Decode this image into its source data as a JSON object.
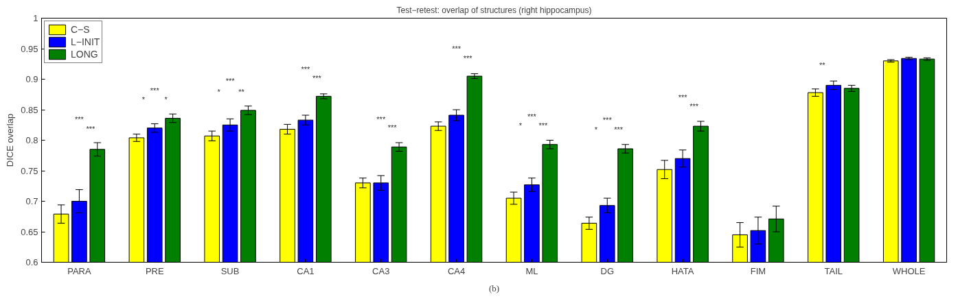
{
  "chart_data": {
    "type": "bar",
    "title": "Test−retest: overlap of structures (right hippocampus)",
    "ylabel": "DICE overlap",
    "categories": [
      "PARA",
      "PRE",
      "SUB",
      "CA1",
      "CA3",
      "CA4",
      "ML",
      "DG",
      "HATA",
      "FIM",
      "TAIL",
      "WHOLE"
    ],
    "series": [
      {
        "name": "C−S",
        "color": "#ffff00",
        "values": [
          0.679,
          0.804,
          0.807,
          0.818,
          0.73,
          0.823,
          0.705,
          0.664,
          0.752,
          0.645,
          0.878,
          0.93
        ],
        "errors": [
          0.015,
          0.006,
          0.008,
          0.008,
          0.008,
          0.007,
          0.01,
          0.01,
          0.015,
          0.02,
          0.006,
          0.002
        ]
      },
      {
        "name": "L−INIT",
        "color": "#0000ff",
        "values": [
          0.7,
          0.82,
          0.825,
          0.833,
          0.73,
          0.841,
          0.727,
          0.693,
          0.77,
          0.652,
          0.89,
          0.934
        ],
        "errors": [
          0.019,
          0.007,
          0.01,
          0.008,
          0.012,
          0.009,
          0.011,
          0.012,
          0.014,
          0.022,
          0.007,
          0.002
        ]
      },
      {
        "name": "LONG",
        "color": "#007f00",
        "values": [
          0.785,
          0.836,
          0.849,
          0.872,
          0.789,
          0.905,
          0.793,
          0.786,
          0.823,
          0.671,
          0.885,
          0.933
        ],
        "errors": [
          0.011,
          0.007,
          0.007,
          0.004,
          0.007,
          0.004,
          0.007,
          0.007,
          0.008,
          0.021,
          0.005,
          0.002
        ]
      }
    ],
    "ylim": [
      0.6,
      1
    ],
    "yticks": [
      0.6,
      0.65,
      0.7,
      0.75,
      0.8,
      0.85,
      0.9,
      0.95,
      1
    ],
    "grid": false,
    "legend": "top left",
    "annotations": [
      "***",
      "***",
      "***",
      "*",
      "*",
      "***",
      "*",
      "**",
      "***",
      "***",
      "***",
      "***",
      "***",
      "***",
      "***",
      "*",
      "***",
      "***",
      "*",
      "***",
      "***",
      "***",
      "**",
      "(b)"
    ]
  }
}
